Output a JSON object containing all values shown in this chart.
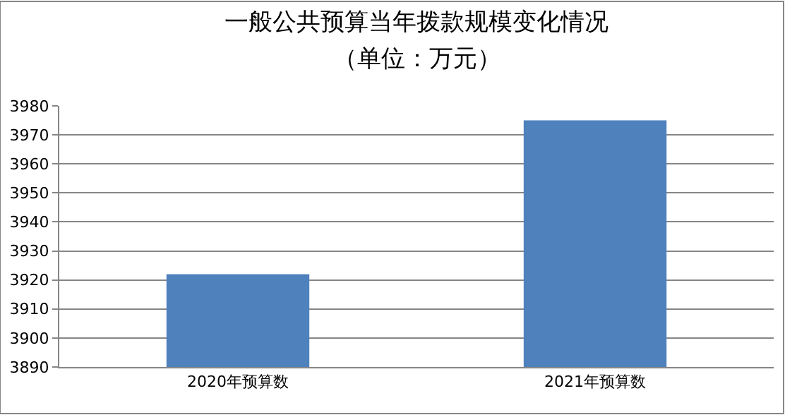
{
  "chart_data": {
    "type": "bar",
    "title": "一般公共预算当年拨款规模变化情况",
    "subtitle": "（单位：万元）",
    "categories": [
      "2020年预算数",
      "2021年预算数"
    ],
    "series": [
      {
        "color": "#4f81bd",
        "values": [
          3922,
          3975
        ]
      }
    ],
    "ylim": [
      3890,
      3980
    ],
    "yticks": [
      3890,
      3900,
      3910,
      3920,
      3930,
      3940,
      3950,
      3960,
      3970,
      3980
    ],
    "grid": "y"
  }
}
